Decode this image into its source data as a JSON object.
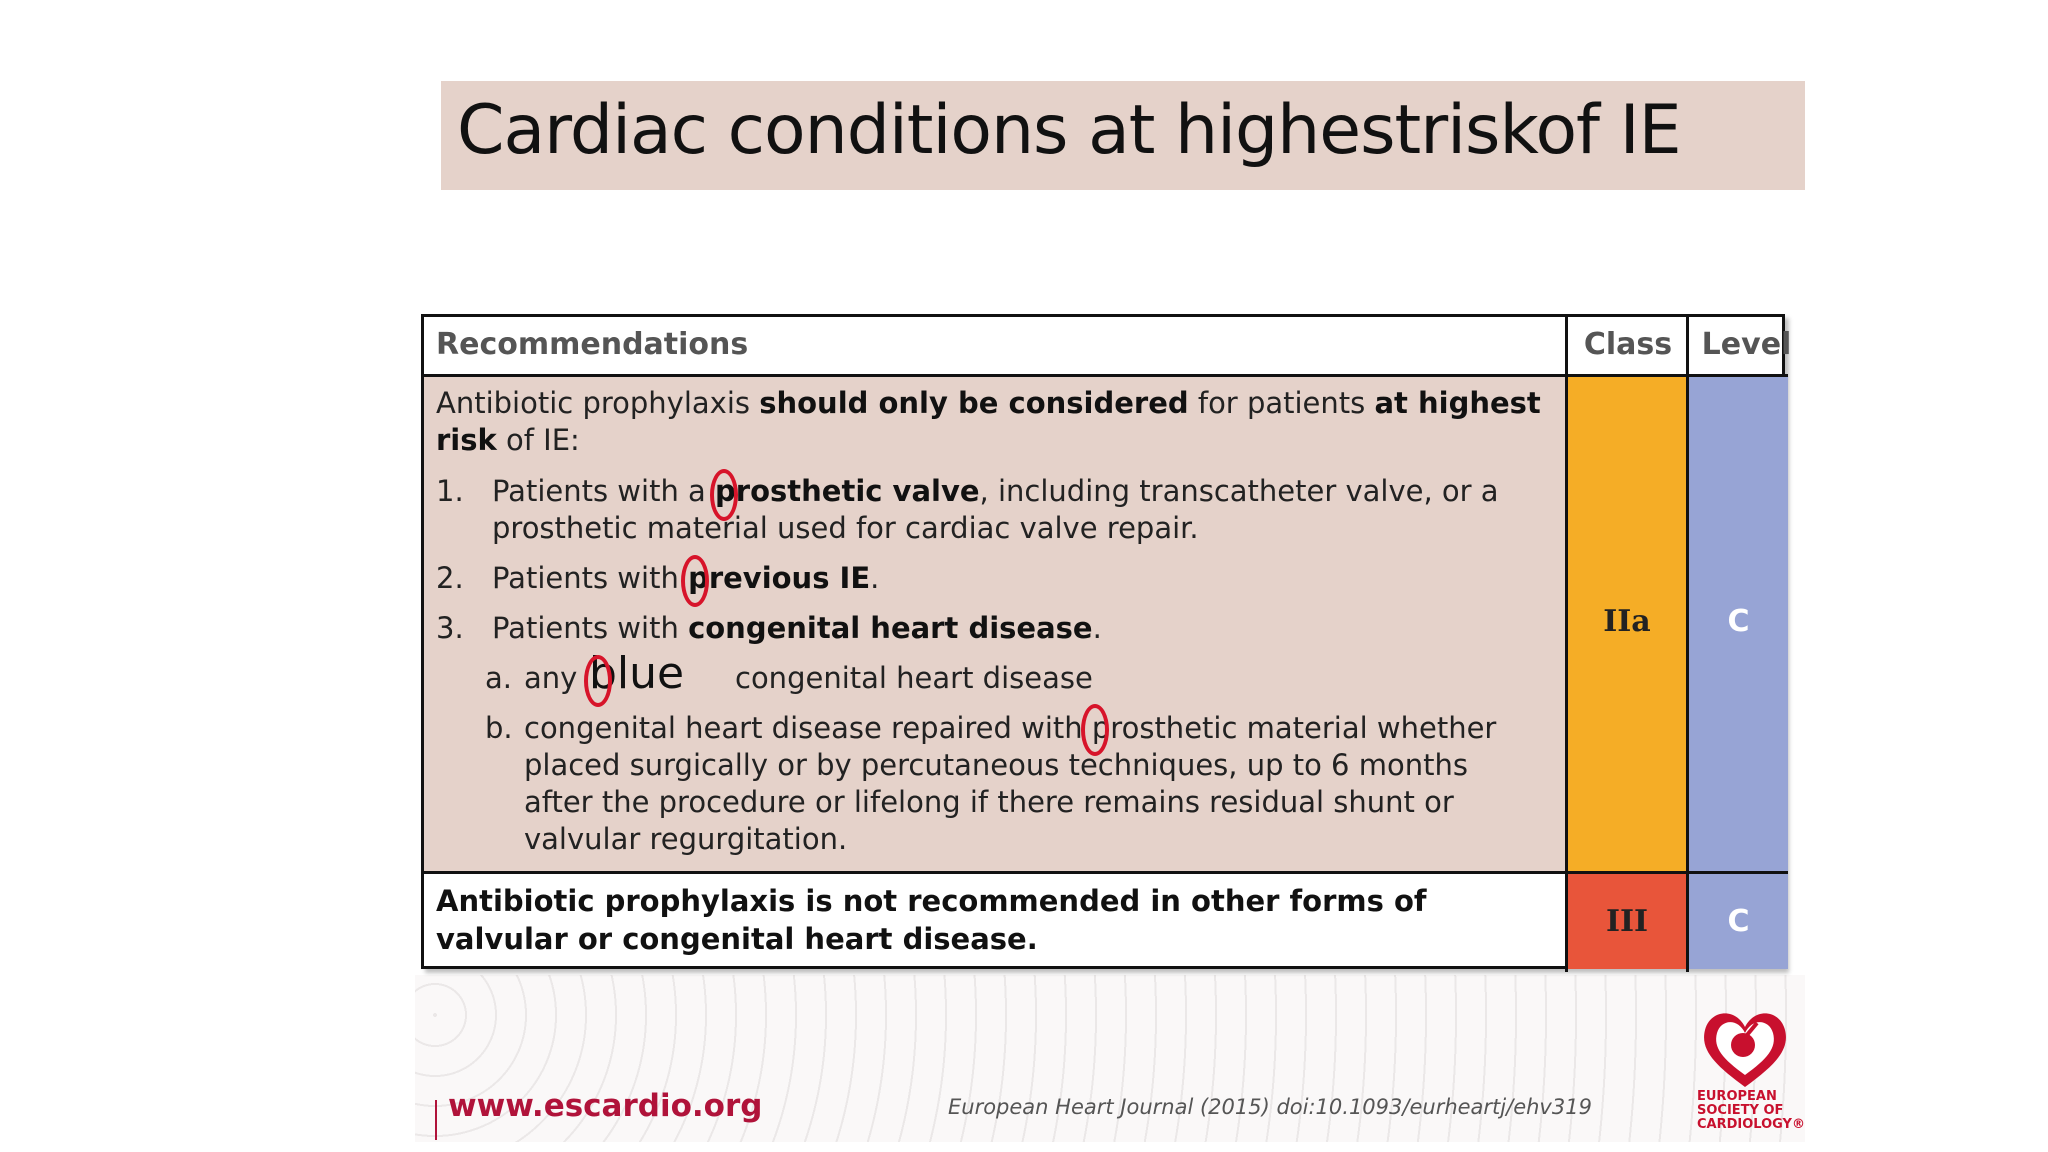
{
  "title": "Cardiac conditions at highestriskof IE",
  "table": {
    "headers": {
      "recommendations": "Recommendations",
      "class": "Class",
      "level": "Level"
    },
    "row1": {
      "intro_1": "Antibiotic prophylaxis ",
      "intro_2": "should only be considered",
      "intro_3": " for patients ",
      "intro_4": "at highest risk",
      "intro_5": " of IE:",
      "item1_num": "1.",
      "item1_a": "Patients with a ",
      "item1_b": "prosthetic valve",
      "item1_c": ", including transcatheter valve, or a prosthetic material used for cardiac valve repair.",
      "item2_num": "2.",
      "item2_a": "Patients with ",
      "item2_b": "previous IE",
      "item2_c": ".",
      "item3_num": "3.",
      "item3_a": "Patients with ",
      "item3_b": "congenital heart disease",
      "item3_c": ".",
      "sub_a_label": "a.",
      "sub_a_1": "any",
      "sub_a_word": "blue",
      "sub_a_2": "congenital heart disease",
      "sub_b_label": "b.",
      "sub_b_text": "congenital heart disease repaired with prosthetic material whether placed surgically or by percutaneous techniques, up to 6 months after the procedure or lifelong if there remains residual shunt or valvular regurgitation.",
      "class": "IIa",
      "level": "C"
    },
    "row2": {
      "text": "Antibiotic prophylaxis is not recommended in other forms of valvular or congenital heart disease.",
      "class": "III",
      "level": "C"
    }
  },
  "footer": {
    "url": "www.escardio.org",
    "citation": "European Heart Journal (2015) doi:10.1093/eurheartj/ehv319",
    "logo_text_1": "EUROPEAN",
    "logo_text_2": "SOCIETY OF",
    "logo_text_3": "CARDIOLOGY®"
  },
  "colors": {
    "class_iia": "#f5ad26",
    "class_iii": "#e8553a",
    "level": "#97a4d5",
    "row_bg": "#e5d2ca",
    "annotation_ring": "#d7142a"
  }
}
